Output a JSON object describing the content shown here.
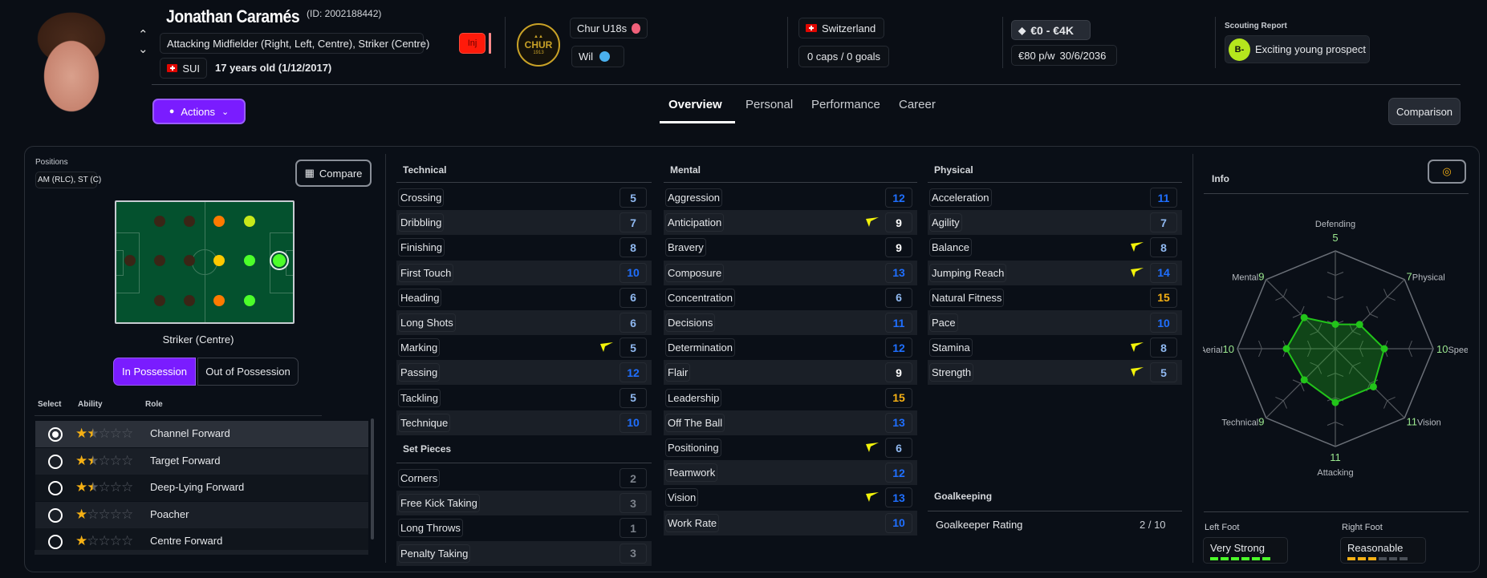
{
  "header": {
    "name": "Jonathan Caramés",
    "id_text": "(ID: 2002188442)",
    "positions_text": "Attacking Midfielder (Right, Left, Centre), Striker (Centre)",
    "nationality_code": "SUI",
    "age_text": "17 years old (1/12/2017)",
    "injury_badge": "Inj",
    "club_logo_text": "CHUR",
    "club_logo_year": "1913",
    "team": "Chur U18s",
    "loan_team": "Wil",
    "nation": "Switzerland",
    "caps": "0 caps / 0 goals",
    "value": "€0 - €4K",
    "wage": "€80 p/w",
    "contract_end": "30/6/2036",
    "scouting_label": "Scouting Report",
    "scout_grade": "B-",
    "scout_text": "Exciting young prospect",
    "actions_label": "Actions",
    "comparison_label": "Comparison",
    "tabs": [
      "Overview",
      "Personal",
      "Performance",
      "Career"
    ],
    "active_tab": "Overview"
  },
  "positions": {
    "label": "Positions",
    "summary": "AM (RLC), ST (C)",
    "compare_label": "Compare",
    "selected_position": "Striker (Centre)",
    "possession_tabs": [
      "In Possession",
      "Out of Possession"
    ],
    "pitch_colors": {
      "none": "#3a2516",
      "poor": "#ff7a00",
      "ok": "#ffc800",
      "good": "#c8e81a",
      "natural": "#4cff2a"
    },
    "pitch": [
      [
        "none",
        "none",
        "poor",
        "good"
      ],
      [
        "none",
        "none",
        "none",
        "ok",
        "natural",
        "natural"
      ],
      [
        "none",
        "none",
        "poor",
        "natural"
      ]
    ],
    "table_headers": [
      "Select",
      "Ability",
      "Role"
    ],
    "roles": [
      {
        "name": "Channel Forward",
        "stars": 1.5,
        "selected": true
      },
      {
        "name": "Target Forward",
        "stars": 1.5,
        "selected": false
      },
      {
        "name": "Deep-Lying Forward",
        "stars": 1.5,
        "selected": false
      },
      {
        "name": "Poacher",
        "stars": 1,
        "selected": false
      },
      {
        "name": "Centre Forward",
        "stars": 1,
        "selected": false
      }
    ]
  },
  "attributes": {
    "technical": {
      "title": "Technical",
      "items": [
        {
          "name": "Crossing",
          "value": 5
        },
        {
          "name": "Dribbling",
          "value": 7
        },
        {
          "name": "Finishing",
          "value": 8
        },
        {
          "name": "First Touch",
          "value": 10
        },
        {
          "name": "Heading",
          "value": 6
        },
        {
          "name": "Long Shots",
          "value": 6
        },
        {
          "name": "Marking",
          "value": 5,
          "trend": true
        },
        {
          "name": "Passing",
          "value": 12
        },
        {
          "name": "Tackling",
          "value": 5
        },
        {
          "name": "Technique",
          "value": 10
        }
      ]
    },
    "set_pieces": {
      "title": "Set Pieces",
      "items": [
        {
          "name": "Corners",
          "value": 2
        },
        {
          "name": "Free Kick Taking",
          "value": 3
        },
        {
          "name": "Long Throws",
          "value": 1
        },
        {
          "name": "Penalty Taking",
          "value": 3
        }
      ]
    },
    "mental": {
      "title": "Mental",
      "items": [
        {
          "name": "Aggression",
          "value": 12
        },
        {
          "name": "Anticipation",
          "value": 9,
          "trend": true
        },
        {
          "name": "Bravery",
          "value": 9
        },
        {
          "name": "Composure",
          "value": 13
        },
        {
          "name": "Concentration",
          "value": 6
        },
        {
          "name": "Decisions",
          "value": 11
        },
        {
          "name": "Determination",
          "value": 12
        },
        {
          "name": "Flair",
          "value": 9
        },
        {
          "name": "Leadership",
          "value": 15
        },
        {
          "name": "Off The Ball",
          "value": 13
        },
        {
          "name": "Positioning",
          "value": 6,
          "trend": true
        },
        {
          "name": "Teamwork",
          "value": 12
        },
        {
          "name": "Vision",
          "value": 13,
          "trend": true
        },
        {
          "name": "Work Rate",
          "value": 10
        }
      ]
    },
    "physical": {
      "title": "Physical",
      "items": [
        {
          "name": "Acceleration",
          "value": 11
        },
        {
          "name": "Agility",
          "value": 7
        },
        {
          "name": "Balance",
          "value": 8,
          "trend": true
        },
        {
          "name": "Jumping Reach",
          "value": 14,
          "trend": true
        },
        {
          "name": "Natural Fitness",
          "value": 15
        },
        {
          "name": "Pace",
          "value": 10
        },
        {
          "name": "Stamina",
          "value": 8,
          "trend": true
        },
        {
          "name": "Strength",
          "value": 5,
          "trend": true
        }
      ]
    },
    "goalkeeping": {
      "title": "Goalkeeping",
      "rating_label": "Goalkeeper Rating",
      "rating": "2 / 10"
    }
  },
  "info": {
    "title": "Info",
    "radar": {
      "max": 20,
      "axes": [
        {
          "name": "Defending",
          "value": 5
        },
        {
          "name": "Physical",
          "value": 7
        },
        {
          "name": "Speed",
          "value": 10
        },
        {
          "name": "Vision",
          "value": 11
        },
        {
          "name": "Attacking",
          "value": 11
        },
        {
          "name": "Technical",
          "value": 9
        },
        {
          "name": "Aerial",
          "value": 10
        },
        {
          "name": "Mental",
          "value": 9
        }
      ],
      "color": "#22c41a"
    },
    "left_foot_label": "Left Foot",
    "left_foot": "Very Strong",
    "left_foot_level": 6,
    "right_foot_label": "Right Foot",
    "right_foot": "Reasonable",
    "right_foot_level": 3,
    "foot_level_max": 6
  },
  "colors": {
    "accent": "#7a1cff",
    "attr_low": "#8fb8f0",
    "attr_mid": "#ffffff",
    "attr_high": "#1f6fff",
    "attr_top": "#f5b014",
    "attr_setpiece": "#7d838c"
  }
}
